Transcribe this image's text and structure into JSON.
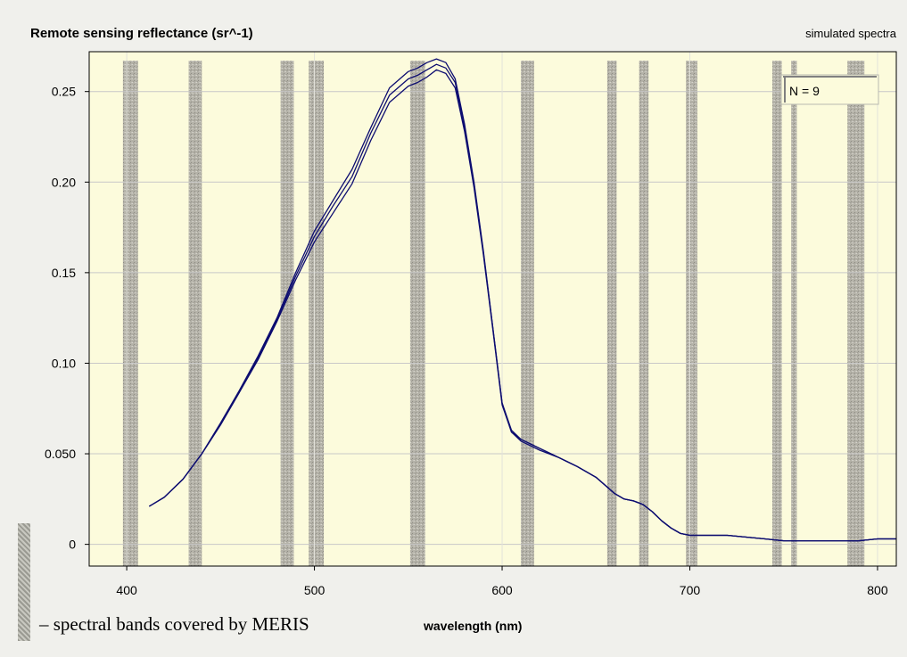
{
  "chart_data": {
    "type": "line",
    "title": "Remote sensing reflectance (sr^-1)",
    "subtitle": "simulated spectra",
    "xlabel": "wavelength (nm)",
    "ylabel": "",
    "xlim": [
      380,
      810
    ],
    "ylim": [
      -0.012,
      0.272
    ],
    "xticks": [
      400,
      500,
      600,
      700,
      800
    ],
    "yticks": [
      0,
      0.05,
      0.1,
      0.15,
      0.2,
      0.25
    ],
    "ytick_labels": [
      "0",
      "0.050",
      "0.10",
      "0.15",
      "0.20",
      "0.25"
    ],
    "grid": true,
    "annotation": "N = 9",
    "band_legend": "– spectral bands covered by MERIS",
    "meris_bands": [
      {
        "start": 398,
        "end": 406
      },
      {
        "start": 433,
        "end": 440
      },
      {
        "start": 482,
        "end": 489
      },
      {
        "start": 497,
        "end": 505
      },
      {
        "start": 551,
        "end": 559
      },
      {
        "start": 610,
        "end": 617
      },
      {
        "start": 656,
        "end": 661
      },
      {
        "start": 673,
        "end": 678
      },
      {
        "start": 698,
        "end": 704
      },
      {
        "start": 744,
        "end": 749
      },
      {
        "start": 754,
        "end": 757
      },
      {
        "start": 784,
        "end": 793
      }
    ],
    "x": [
      412,
      420,
      430,
      440,
      450,
      460,
      470,
      480,
      490,
      500,
      510,
      520,
      530,
      540,
      550,
      555,
      560,
      565,
      570,
      575,
      580,
      585,
      590,
      595,
      600,
      605,
      610,
      620,
      630,
      640,
      650,
      660,
      665,
      670,
      675,
      680,
      685,
      690,
      695,
      700,
      705,
      710,
      720,
      730,
      740,
      750,
      760,
      770,
      780,
      790,
      800,
      810
    ],
    "series": [
      {
        "values": [
          0.021,
          0.026,
          0.036,
          0.05,
          0.067,
          0.085,
          0.104,
          0.125,
          0.15,
          0.173,
          0.19,
          0.207,
          0.23,
          0.252,
          0.261,
          0.263,
          0.266,
          0.268,
          0.266,
          0.257,
          0.232,
          0.2,
          0.162,
          0.12,
          0.078,
          0.063,
          0.058,
          0.053,
          0.048,
          0.043,
          0.037,
          0.028,
          0.025,
          0.024,
          0.022,
          0.018,
          0.013,
          0.009,
          0.006,
          0.005,
          0.005,
          0.005,
          0.005,
          0.004,
          0.003,
          0.002,
          0.002,
          0.002,
          0.002,
          0.002,
          0.003,
          0.003
        ]
      },
      {
        "values": [
          0.021,
          0.026,
          0.036,
          0.05,
          0.066,
          0.084,
          0.103,
          0.124,
          0.148,
          0.17,
          0.187,
          0.203,
          0.227,
          0.248,
          0.257,
          0.259,
          0.262,
          0.265,
          0.263,
          0.255,
          0.23,
          0.199,
          0.161,
          0.12,
          0.078,
          0.062,
          0.058,
          0.053,
          0.048,
          0.043,
          0.037,
          0.028,
          0.025,
          0.024,
          0.022,
          0.018,
          0.013,
          0.009,
          0.006,
          0.005,
          0.005,
          0.005,
          0.005,
          0.004,
          0.003,
          0.002,
          0.002,
          0.002,
          0.002,
          0.002,
          0.003,
          0.003
        ]
      },
      {
        "values": [
          0.021,
          0.026,
          0.036,
          0.05,
          0.066,
          0.084,
          0.102,
          0.123,
          0.146,
          0.167,
          0.183,
          0.199,
          0.223,
          0.244,
          0.253,
          0.255,
          0.258,
          0.262,
          0.26,
          0.252,
          0.228,
          0.197,
          0.16,
          0.119,
          0.077,
          0.062,
          0.057,
          0.052,
          0.048,
          0.043,
          0.037,
          0.028,
          0.025,
          0.024,
          0.022,
          0.018,
          0.013,
          0.009,
          0.006,
          0.005,
          0.005,
          0.005,
          0.005,
          0.004,
          0.003,
          0.002,
          0.002,
          0.002,
          0.002,
          0.002,
          0.003,
          0.003
        ]
      }
    ],
    "colors": {
      "plot_background": "#fcfbdc",
      "band_fill": "#b4b2a8",
      "line": "#0c0c70",
      "grid": "#c8c8c8"
    }
  }
}
